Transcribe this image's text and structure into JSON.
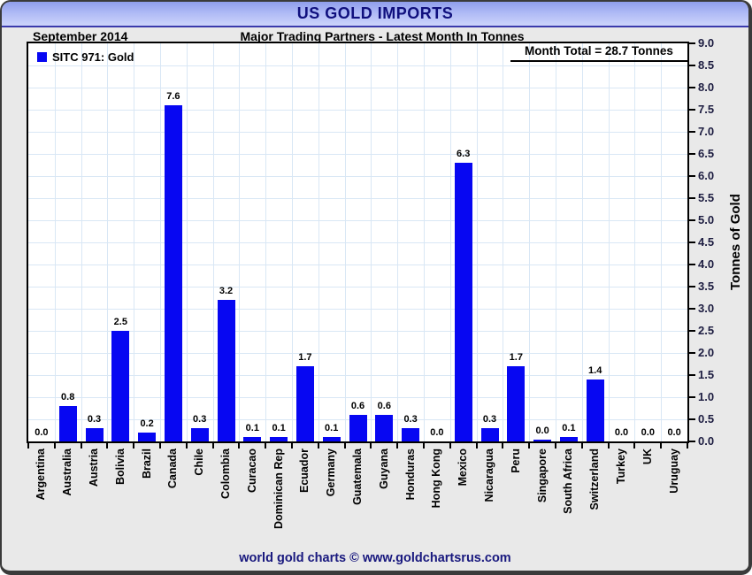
{
  "title_bar": {
    "title": "US GOLD IMPORTS"
  },
  "header": {
    "period": "September 2014",
    "subtitle": "Major Trading Partners - Latest Month In Tonnes"
  },
  "legend": {
    "label": "SITC 971: Gold"
  },
  "annotations": {
    "month_total": "Month Total = 28.7 Tonnes"
  },
  "footer": {
    "credit": "world gold charts © www.goldchartsrus.com"
  },
  "colors": {
    "bar": "#0707f2",
    "grid": "#d9e7f5",
    "title_navy": "#10107e",
    "footer_navy": "#18187e",
    "axis_tick_text": "#1c1c40"
  },
  "chart_data": {
    "type": "bar",
    "title": "US GOLD IMPORTS",
    "subtitle": "Major Trading Partners - Latest Month In Tonnes",
    "period": "September 2014",
    "series_name": "SITC 971: Gold",
    "month_total_tonnes": 28.7,
    "ylabel": "Tonnes of Gold",
    "xlabel": "",
    "ylim": [
      0.0,
      9.0
    ],
    "ytick_step": 0.5,
    "grid": true,
    "legend_position": "top-left",
    "bar_color": "#0707f2",
    "categories": [
      "Argentina",
      "Australia",
      "Austria",
      "Bolivia",
      "Brazil",
      "Canada",
      "Chile",
      "Colombia",
      "Curacao",
      "Dominican Rep",
      "Ecuador",
      "Germany",
      "Guatemala",
      "Guyana",
      "Honduras",
      "Hong Kong",
      "Mexico",
      "Nicaragua",
      "Peru",
      "Singapore",
      "South Africa",
      "Switzerland",
      "Turkey",
      "UK",
      "Uruguay"
    ],
    "values": [
      0.0,
      0.8,
      0.3,
      2.5,
      0.2,
      7.6,
      0.3,
      3.2,
      0.1,
      0.1,
      1.7,
      0.1,
      0.6,
      0.6,
      0.3,
      0.0,
      6.3,
      0.3,
      1.7,
      0.0,
      0.1,
      1.4,
      0.0,
      0.0,
      0.0
    ],
    "tiny_bar_categories": [
      "Singapore"
    ]
  }
}
